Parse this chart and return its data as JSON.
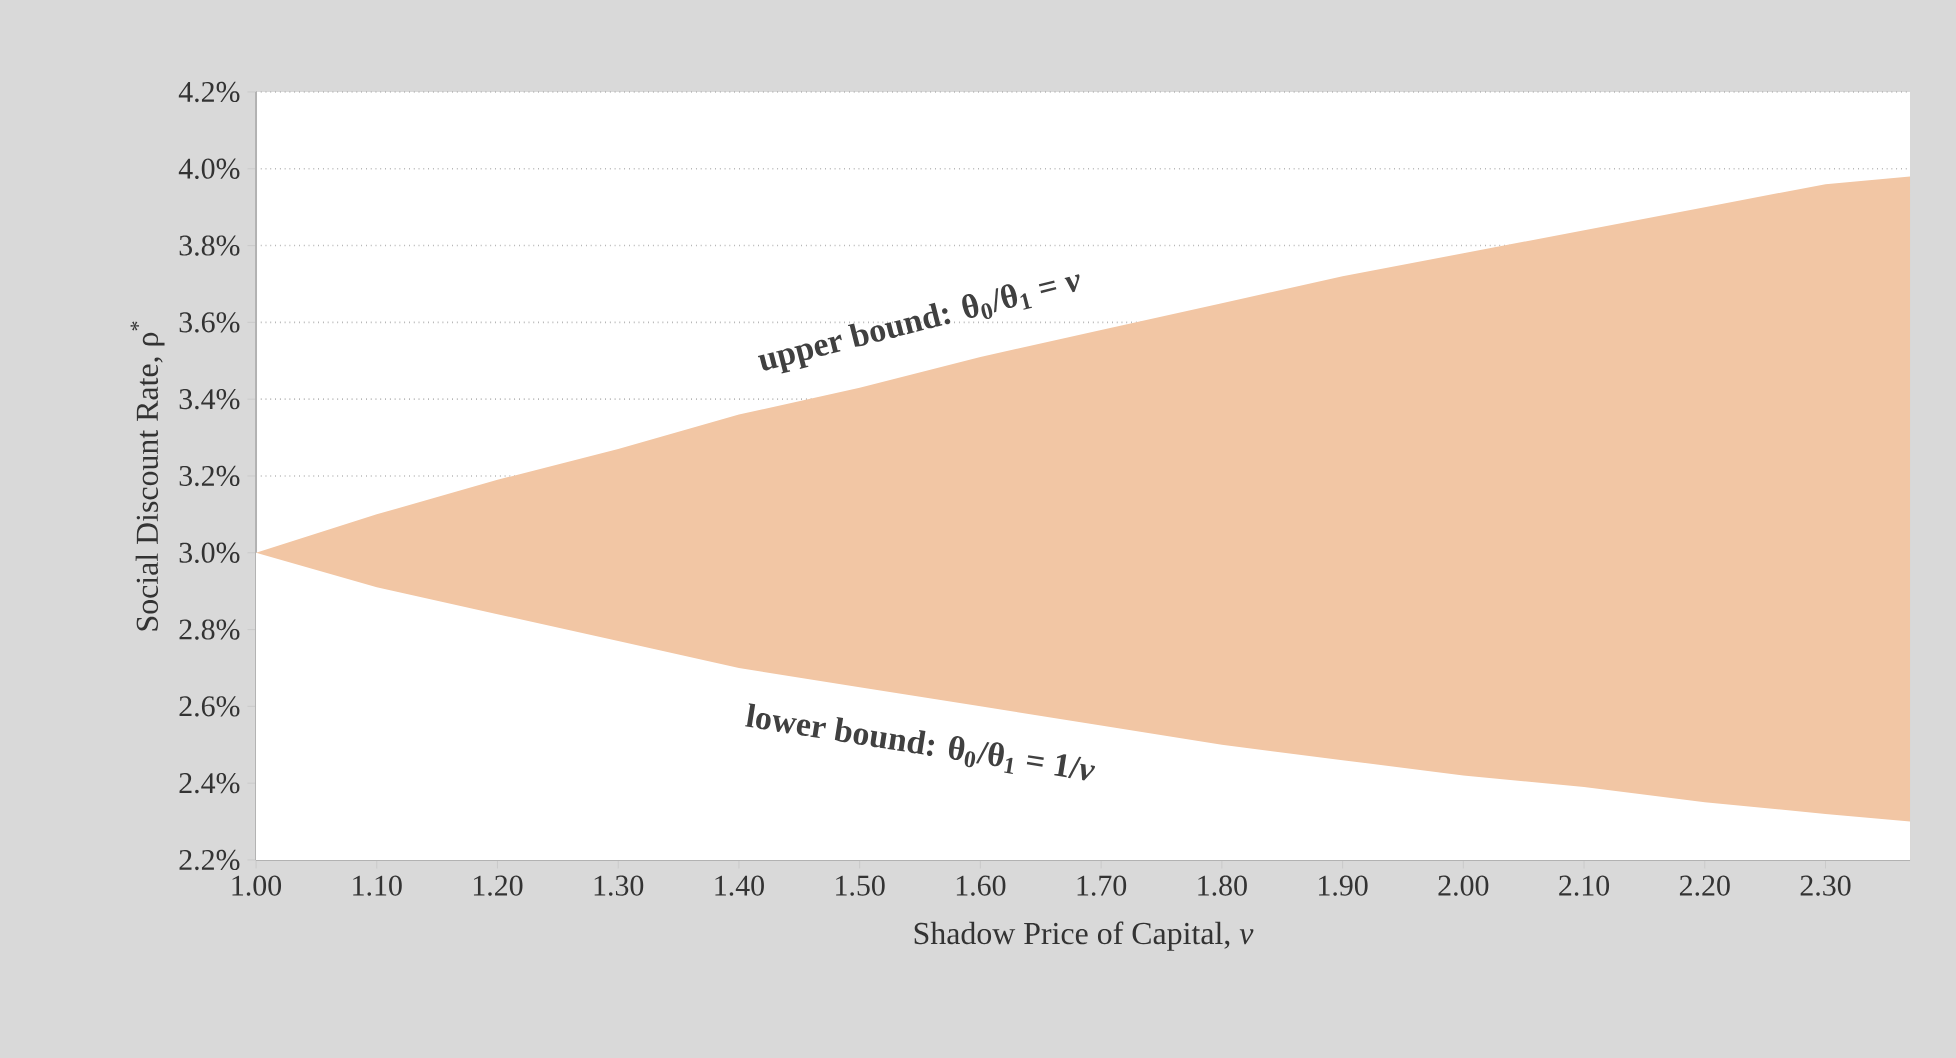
{
  "chart_data": {
    "type": "area",
    "xlabel": "Shadow Price of Capital, *v*",
    "ylabel": "Social Discount Rate, ρ$^{*}$",
    "x": [
      1.0,
      1.1,
      1.2,
      1.3,
      1.4,
      1.5,
      1.6,
      1.7,
      1.8,
      1.9,
      2.0,
      2.1,
      2.2,
      2.3,
      2.37
    ],
    "series": [
      {
        "color": "#f2c6a4",
        "values": [
          3.0,
          3.1,
          3.19,
          3.27,
          3.36,
          3.43,
          3.51,
          3.58,
          3.65,
          3.72,
          3.78,
          3.84,
          3.9,
          3.96,
          3.98
        ]
      },
      {
        "color": "#ffffff",
        "values": [
          3.0,
          2.91,
          2.84,
          2.77,
          2.7,
          2.65,
          2.6,
          2.55,
          2.5,
          2.46,
          2.42,
          2.39,
          2.35,
          2.32,
          2.3
        ]
      }
    ],
    "xlim": [
      1.0,
      2.37
    ],
    "ylim": [
      2.2,
      4.2
    ],
    "xticks": [
      {
        "value": 1.0,
        "label": "1.00"
      },
      {
        "value": 1.1,
        "label": "1.10"
      },
      {
        "value": 1.2,
        "label": "1.20"
      },
      {
        "value": 1.3,
        "label": "1.30"
      },
      {
        "value": 1.4,
        "label": "1.40"
      },
      {
        "value": 1.5,
        "label": "1.50"
      },
      {
        "value": 1.6,
        "label": "1.60"
      },
      {
        "value": 1.7,
        "label": "1.70"
      },
      {
        "value": 1.8,
        "label": "1.80"
      },
      {
        "value": 1.9,
        "label": "1.90"
      },
      {
        "value": 2.0,
        "label": "2.00"
      },
      {
        "value": 2.1,
        "label": "2.10"
      },
      {
        "value": 2.2,
        "label": "2.20"
      },
      {
        "value": 2.3,
        "label": "2.30"
      }
    ],
    "yticks": [
      {
        "value": 2.2,
        "label": "2.2%"
      },
      {
        "value": 2.4,
        "label": "2.4%"
      },
      {
        "value": 2.6,
        "label": "2.6%"
      },
      {
        "value": 2.8,
        "label": "2.8%"
      },
      {
        "value": 3.0,
        "label": "3.0%"
      },
      {
        "value": 3.2,
        "label": "3.2%"
      },
      {
        "value": 3.4,
        "label": "3.4%"
      },
      {
        "value": 3.6,
        "label": "3.6%"
      },
      {
        "value": 3.8,
        "label": "3.8%"
      },
      {
        "value": 4.0,
        "label": "4.0%"
      },
      {
        "value": 4.2,
        "label": "4.2%"
      }
    ],
    "grid": "y",
    "annotations": [
      "upper bound: θ$_{0}$/θ$_{1}$ = *v*",
      "lower bound: θ$_{0}$/θ$_{1}$ = 1/*v*"
    ]
  }
}
